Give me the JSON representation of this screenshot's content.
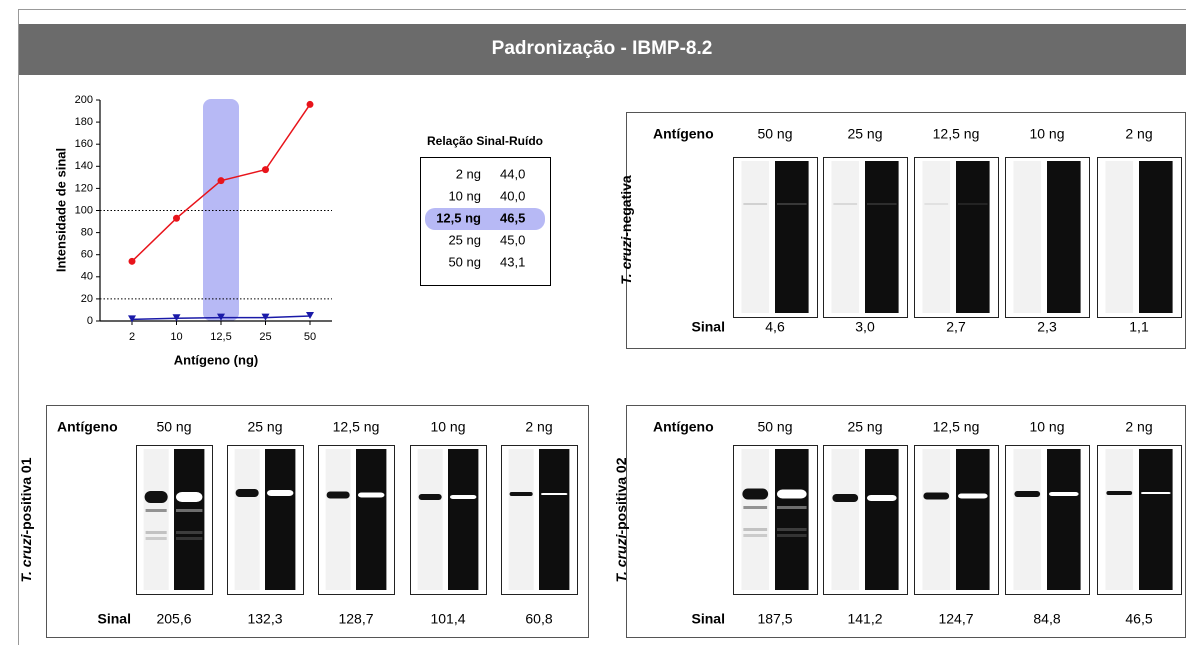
{
  "header": {
    "title": "Padronização - IBMP-8.2"
  },
  "chart_data": {
    "type": "line",
    "x_label": "Antígeno (ng)",
    "y_label": "Intensidade de sinal",
    "categories": [
      "2",
      "10",
      "12,5",
      "25",
      "50"
    ],
    "series": [
      {
        "color": "#e8141b",
        "marker": "circle",
        "values": [
          54,
          93,
          127,
          137,
          196
        ]
      },
      {
        "color": "#1a1aa8",
        "marker": "triangle",
        "values": [
          1.5,
          2.5,
          3,
          3,
          4.5
        ]
      }
    ],
    "ylim": [
      0,
      200
    ],
    "yticks": [
      0,
      20,
      40,
      60,
      80,
      100,
      120,
      140,
      160,
      180,
      200
    ],
    "hlines": [
      20,
      100
    ],
    "highlight_category": 2,
    "highlight_color": "#b7b9f5"
  },
  "snr_table": {
    "title": "Relação Sinal-Ruído",
    "highlight": 2,
    "rows": [
      [
        "2 ng",
        "44,0"
      ],
      [
        "10 ng",
        "40,0"
      ],
      [
        "12,5 ng",
        "46,5"
      ],
      [
        "25 ng",
        "45,0"
      ],
      [
        "50 ng",
        "43,1"
      ]
    ]
  },
  "panels": [
    {
      "label_italic": "T. cruzi",
      "label_rest": "-negativa",
      "header": "Antígeno",
      "antigens": [
        "50 ng",
        "25 ng",
        "12,5 ng",
        "10 ng",
        "2 ng"
      ],
      "signal_label": "Sinal",
      "signals": [
        "4,6",
        "3,0",
        "2,7",
        "2,3",
        "1,1"
      ]
    },
    {
      "label_italic": "T. cruzi",
      "label_rest": "-positiva 01",
      "header": "Antígeno",
      "antigens": [
        "50 ng",
        "25 ng",
        "12,5 ng",
        "10 ng",
        "2 ng"
      ],
      "signal_label": "Sinal",
      "signals": [
        "205,6",
        "132,3",
        "128,7",
        "101,4",
        "60,8"
      ]
    },
    {
      "label_italic": "T. cruzi",
      "label_rest": "-positiva 02",
      "header": "Antígeno",
      "antigens": [
        "50 ng",
        "25 ng",
        "12,5 ng",
        "10 ng",
        "2 ng"
      ],
      "signal_label": "Sinal",
      "signals": [
        "187,5",
        "141,2",
        "124,7",
        "84,8",
        "46,5"
      ]
    }
  ]
}
